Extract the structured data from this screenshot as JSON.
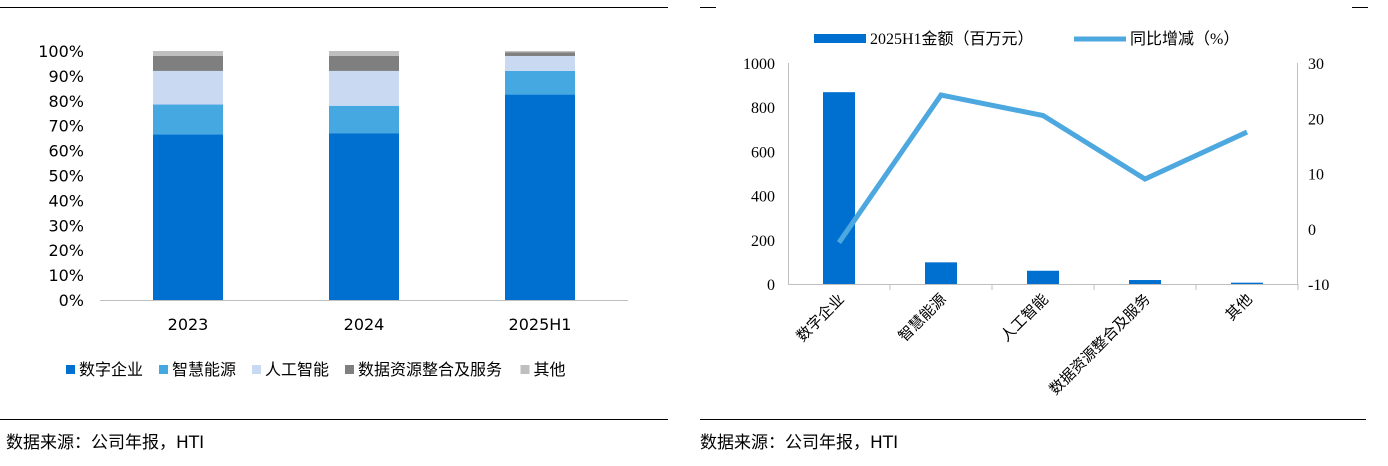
{
  "source_left": "数据来源：公司年报，HTI",
  "source_right": "数据来源：公司年报，HTI",
  "chart_data": [
    {
      "type": "bar",
      "stacked": true,
      "percent": true,
      "categories": [
        "2023",
        "2024",
        "2025H1"
      ],
      "series": [
        {
          "name": "数字企业",
          "color": "#0070D0",
          "values": [
            66.5,
            67,
            82.5
          ]
        },
        {
          "name": "智慧能源",
          "color": "#45A8E0",
          "values": [
            12,
            11,
            9.5
          ]
        },
        {
          "name": "人工智能",
          "color": "#C9D9F2",
          "values": [
            13.5,
            14,
            6
          ]
        },
        {
          "name": "数据资源整合及服务",
          "color": "#7F7F7F",
          "values": [
            6,
            6,
            1.5
          ]
        },
        {
          "name": "其他",
          "color": "#BFBFBF",
          "values": [
            2,
            2,
            0.5
          ]
        }
      ],
      "yticks": [
        "0%",
        "10%",
        "20%",
        "30%",
        "40%",
        "50%",
        "60%",
        "70%",
        "80%",
        "90%",
        "100%"
      ],
      "ylim": [
        0,
        100
      ],
      "legend_position": "bottom"
    },
    {
      "type": "bar+line",
      "categories": [
        "数字企业",
        "智慧能源",
        "人工智能",
        "数据资源整合及服务",
        "其他"
      ],
      "bar_series": {
        "name": "2025H1金额（百万元）",
        "color": "#0070D0",
        "values": [
          868,
          98,
          60,
          18,
          6
        ]
      },
      "line_series": {
        "name": "同比增减（%）",
        "color": "#4DA8E0",
        "values": [
          -2.5,
          24.2,
          20.5,
          9,
          17.5
        ]
      },
      "y_left_ticks": [
        "0",
        "200",
        "400",
        "600",
        "800",
        "1000"
      ],
      "y_left_lim": [
        0,
        1000
      ],
      "y_right_ticks": [
        "-10",
        "0",
        "10",
        "20",
        "30"
      ],
      "y_right_lim": [
        -10,
        30
      ],
      "legend_position": "top"
    }
  ]
}
